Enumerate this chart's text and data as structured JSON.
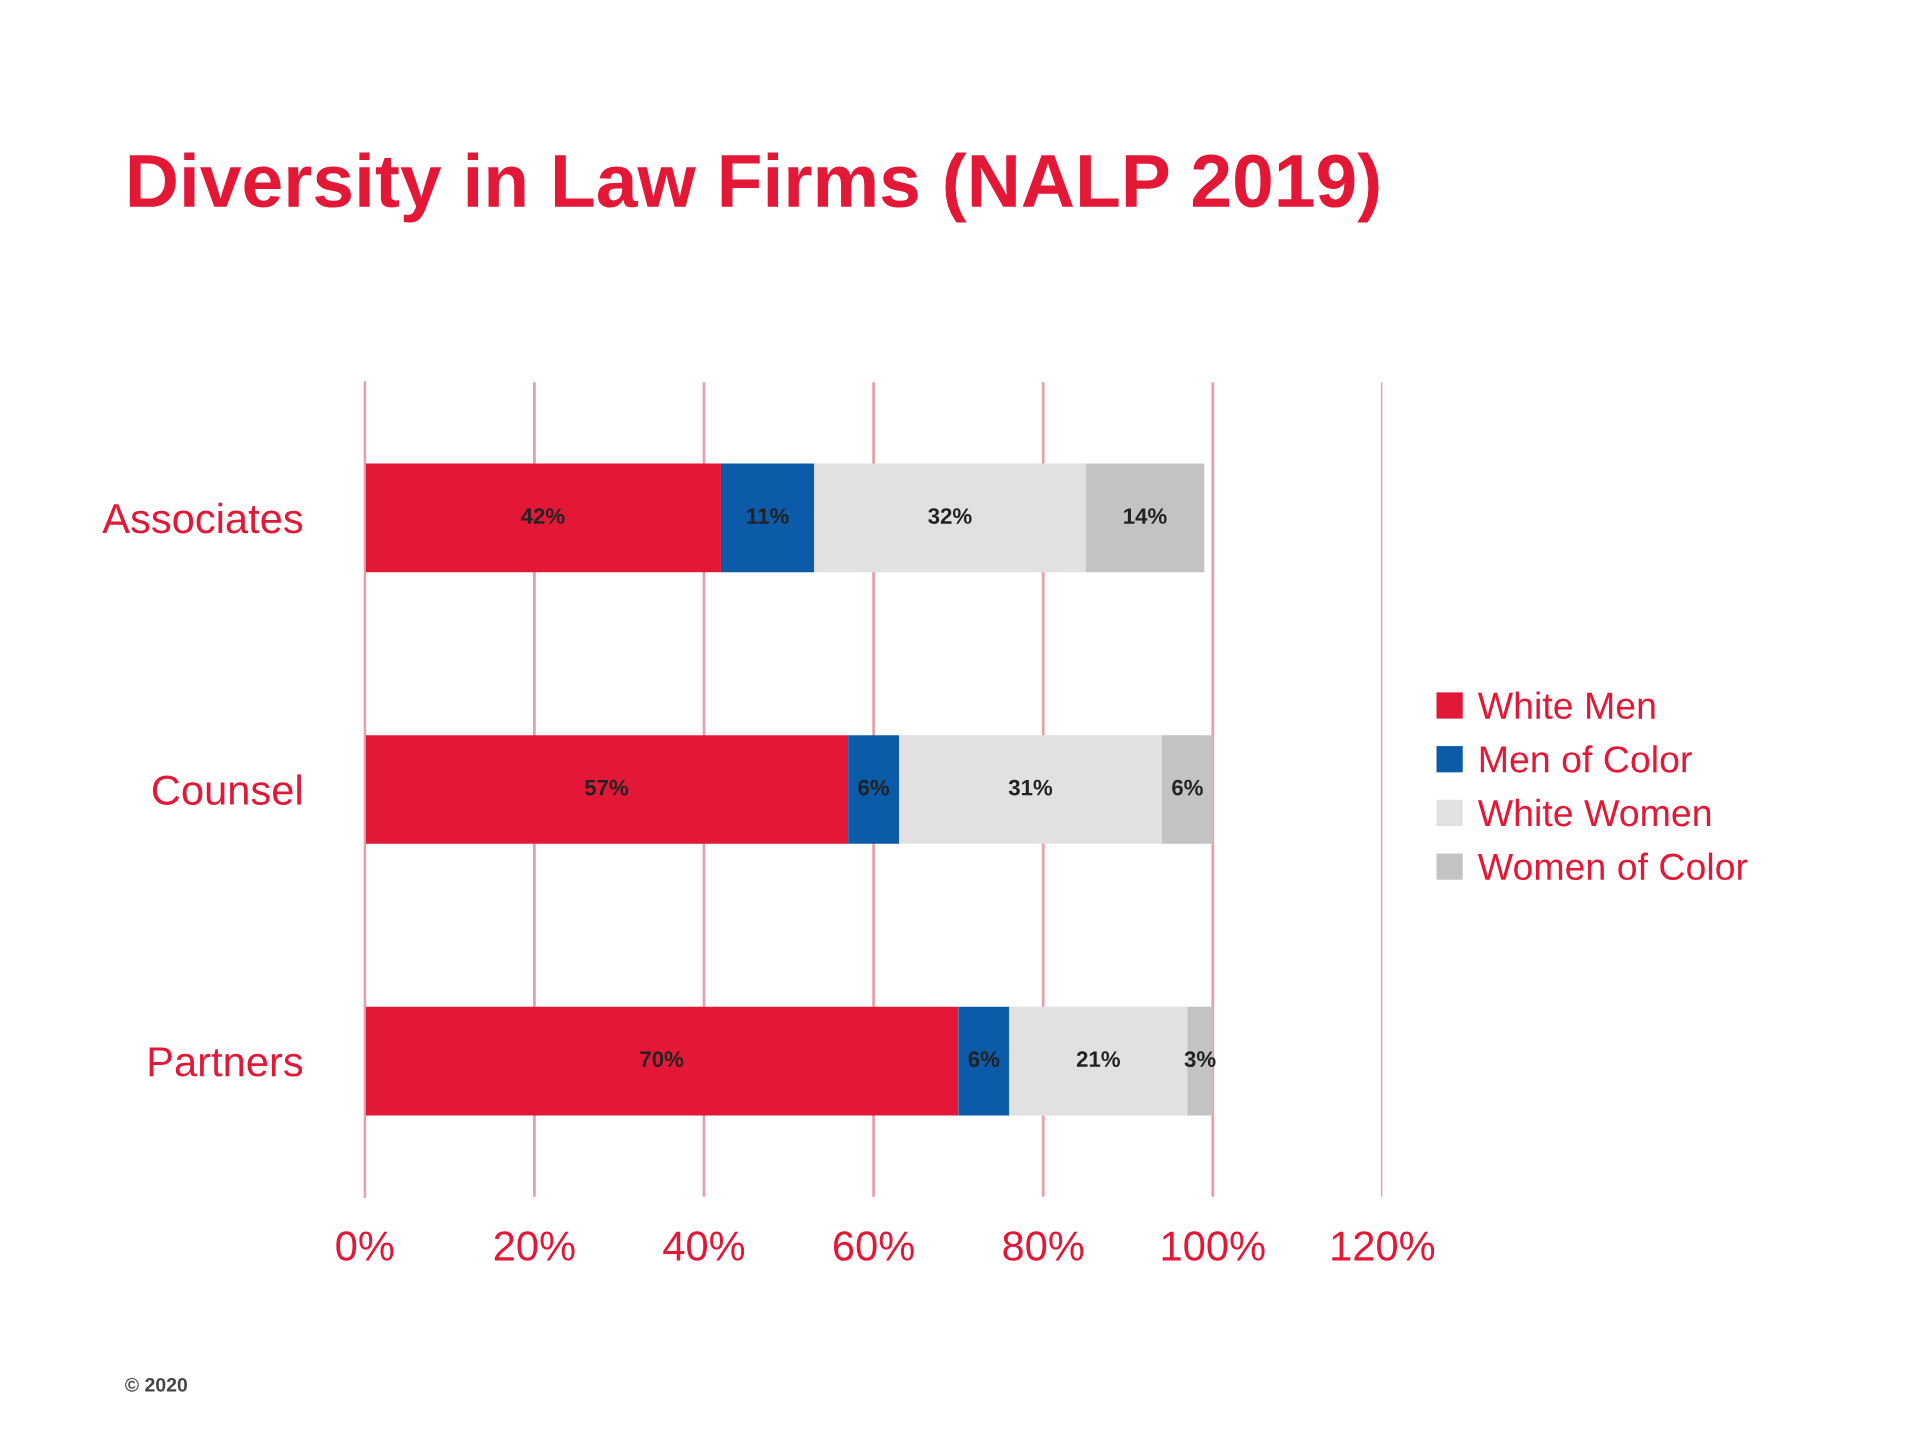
{
  "chart_data": {
    "type": "bar",
    "title": "Diversity in Law Firms (NALP 2019)",
    "orientation": "horizontal",
    "stacked": true,
    "categories": [
      "Associates",
      "Counsel",
      "Partners"
    ],
    "series": [
      {
        "name": "White Men",
        "color": "#e31837",
        "values": [
          42,
          57,
          70
        ],
        "value_labels": [
          "42%",
          "57%",
          "70%"
        ]
      },
      {
        "name": "Men of Color",
        "color": "#0b5ba8",
        "values": [
          11,
          6,
          6
        ],
        "value_labels": [
          "11%",
          "6%",
          "6%"
        ]
      },
      {
        "name": "White Women",
        "color": "#e1e1e1",
        "values": [
          32,
          31,
          21
        ],
        "value_labels": [
          "32%",
          "31%",
          "21%"
        ]
      },
      {
        "name": "Women of Color",
        "color": "#c3c3c3",
        "values": [
          14,
          6,
          3
        ],
        "value_labels": [
          "14%",
          "6%",
          "3%"
        ]
      }
    ],
    "xlim": [
      0,
      120
    ],
    "xticks": [
      {
        "value": 0,
        "label": "0%"
      },
      {
        "value": 20,
        "label": "20%"
      },
      {
        "value": 40,
        "label": "40%"
      },
      {
        "value": 60,
        "label": "60%"
      },
      {
        "value": 80,
        "label": "80%"
      },
      {
        "value": 100,
        "label": "100%"
      },
      {
        "value": 120,
        "label": "120%"
      }
    ],
    "grid": "x",
    "legend": "right",
    "annotations": [
      "© 2020"
    ]
  }
}
